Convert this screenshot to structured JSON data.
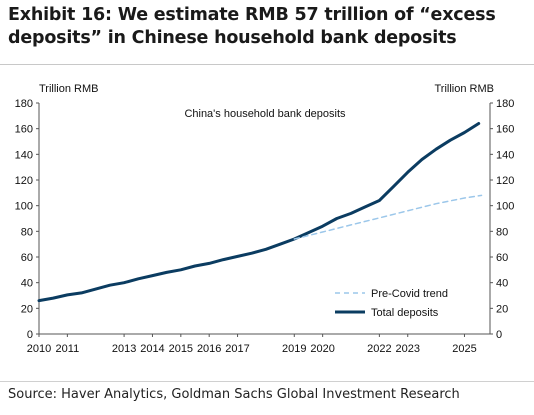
{
  "exhibit": {
    "title": "Exhibit 16: We estimate RMB 57 trillion of “excess deposits” in Chinese household bank deposits",
    "source": "Source: Haver Analytics, Goldman Sachs Global Investment Research"
  },
  "chart_data": {
    "type": "line",
    "title": "China's household bank deposits",
    "ylabel_left": "Trillion RMB",
    "ylabel_right": "Trillion RMB",
    "ylim": [
      0,
      180
    ],
    "yticks": [
      0,
      20,
      40,
      60,
      80,
      100,
      120,
      140,
      160,
      180
    ],
    "xlim": [
      2010,
      2025.9
    ],
    "xticks": [
      "2010",
      "2011",
      "2013",
      "2014",
      "2015",
      "2016",
      "2017",
      "2019",
      "2020",
      "2022",
      "2023",
      "2025"
    ],
    "grid": false,
    "legend_position": "bottom-right",
    "colors": {
      "total": "#0b3c61",
      "trend": "#9cc7ea"
    },
    "series": [
      {
        "name": "Total deposits",
        "style": "solid",
        "points": [
          [
            2010.0,
            26.0
          ],
          [
            2010.5,
            28.0
          ],
          [
            2011.0,
            30.5
          ],
          [
            2011.5,
            32.0
          ],
          [
            2012.0,
            35.0
          ],
          [
            2012.5,
            38.0
          ],
          [
            2013.0,
            40.0
          ],
          [
            2013.5,
            43.0
          ],
          [
            2014.0,
            45.5
          ],
          [
            2014.5,
            48.0
          ],
          [
            2015.0,
            50.0
          ],
          [
            2015.5,
            53.0
          ],
          [
            2016.0,
            55.0
          ],
          [
            2016.5,
            58.0
          ],
          [
            2017.0,
            60.5
          ],
          [
            2017.5,
            63.0
          ],
          [
            2018.0,
            66.0
          ],
          [
            2018.5,
            70.0
          ],
          [
            2019.0,
            74.0
          ],
          [
            2019.5,
            79.0
          ],
          [
            2020.0,
            84.0
          ],
          [
            2020.5,
            90.0
          ],
          [
            2021.0,
            94.0
          ],
          [
            2021.5,
            99.0
          ],
          [
            2022.0,
            104.0
          ],
          [
            2022.5,
            115.0
          ],
          [
            2023.0,
            126.0
          ],
          [
            2023.5,
            136.0
          ],
          [
            2024.0,
            144.0
          ],
          [
            2024.5,
            151.0
          ],
          [
            2025.0,
            157.0
          ],
          [
            2025.5,
            164.0
          ]
        ]
      },
      {
        "name": "Pre-Covid trend",
        "style": "dashed",
        "points": [
          [
            2019.0,
            74.0
          ],
          [
            2020.0,
            79.5
          ],
          [
            2021.0,
            85.0
          ],
          [
            2022.0,
            90.5
          ],
          [
            2023.0,
            96.0
          ],
          [
            2024.0,
            101.5
          ],
          [
            2025.0,
            106.0
          ],
          [
            2025.6,
            108.0
          ]
        ]
      }
    ]
  }
}
